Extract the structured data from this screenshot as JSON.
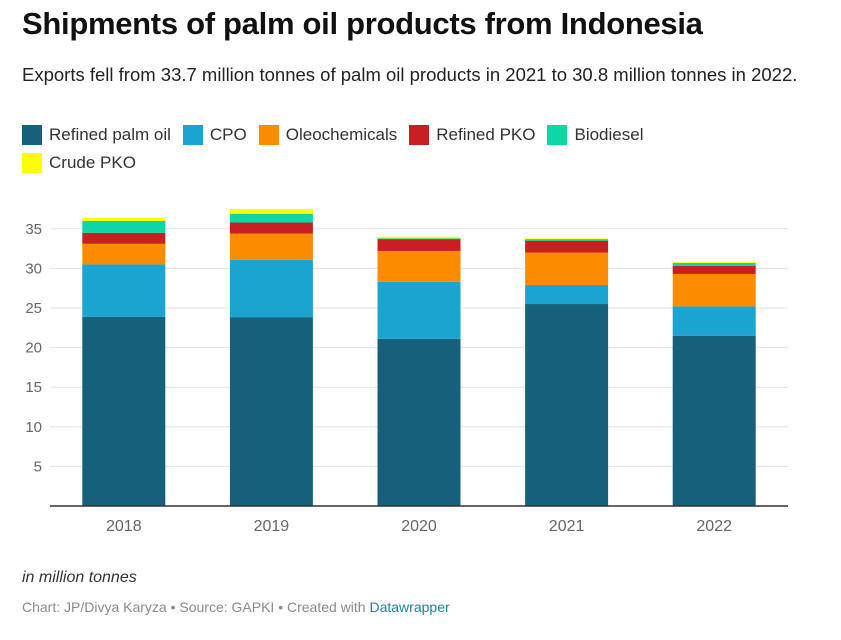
{
  "title": "Shipments of palm oil products from Indonesia",
  "subtitle": "Exports fell from 33.7 million tonnes of palm oil products in 2021 to 30.8 million tonnes in 2022.",
  "unit_note": "in million tonnes",
  "credit": {
    "text": "Chart: JP/Divya Karyza • Source: GAPKI • Created with ",
    "link": "Datawrapper"
  },
  "colors": {
    "Refined palm oil": "#17607c",
    "CPO": "#1ca4d1",
    "Oleochemicals": "#fb8c00",
    "Refined PKO": "#c81f21",
    "Biodiesel": "#0bd8a4",
    "Crude PKO": "#ffff00"
  },
  "chart_data": {
    "type": "bar",
    "stacked": true,
    "categories": [
      "2018",
      "2019",
      "2020",
      "2021",
      "2022"
    ],
    "series": [
      {
        "name": "Refined palm oil",
        "values": [
          23.9,
          23.8,
          21.1,
          25.5,
          21.5
        ]
      },
      {
        "name": "CPO",
        "values": [
          6.6,
          7.3,
          7.2,
          2.4,
          3.7
        ]
      },
      {
        "name": "Oleochemicals",
        "values": [
          2.6,
          3.3,
          3.9,
          4.1,
          4.1
        ]
      },
      {
        "name": "Refined PKO",
        "values": [
          1.4,
          1.4,
          1.5,
          1.5,
          1.0
        ]
      },
      {
        "name": "Biodiesel",
        "values": [
          1.5,
          1.1,
          0.1,
          0.2,
          0.4
        ]
      },
      {
        "name": "Crude PKO",
        "values": [
          0.4,
          0.6,
          0.2,
          0.1,
          0.1
        ]
      }
    ],
    "y_ticks": [
      "5",
      "10",
      "15",
      "20",
      "25",
      "30",
      "35"
    ],
    "ylim": [
      0,
      40
    ],
    "grid": true,
    "legend_position": "top"
  }
}
